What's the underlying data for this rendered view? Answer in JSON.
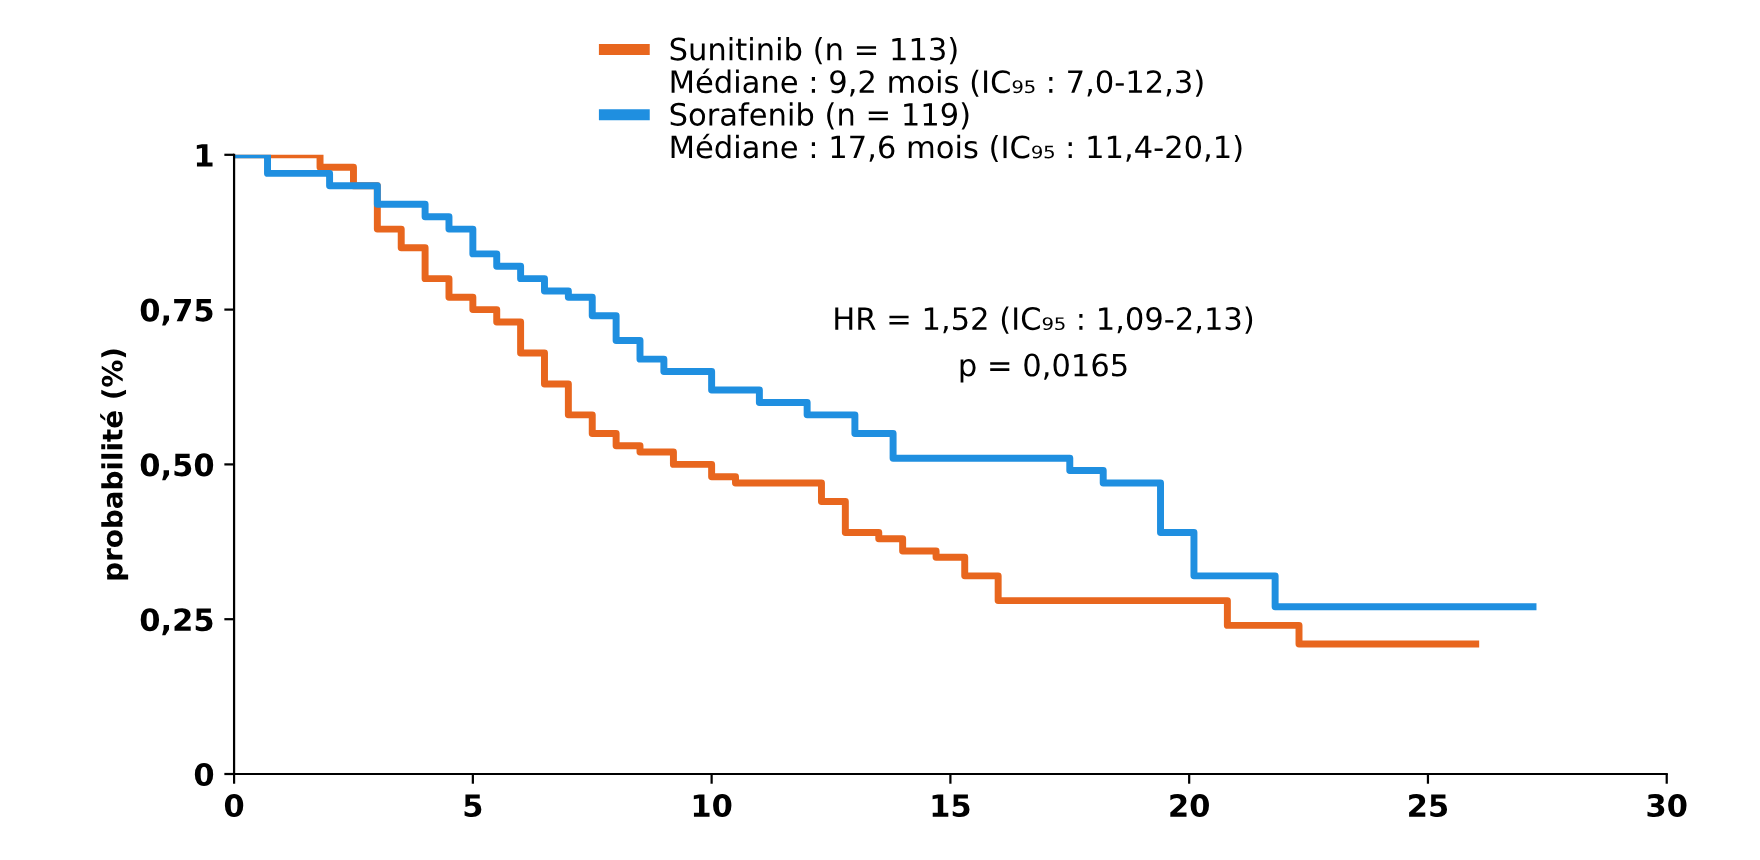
{
  "chart_data": {
    "type": "step",
    "ylabel": "probabilité (%)",
    "xlim": [
      0,
      30
    ],
    "xticks": [
      0,
      5,
      10,
      15,
      20,
      25,
      30
    ],
    "ylim": [
      0,
      1
    ],
    "yticks": [
      0,
      {
        "value": 0.25,
        "label": "0,25"
      },
      {
        "value": 0.5,
        "label": "0,50"
      },
      {
        "value": 0.75,
        "label": "0,75"
      },
      1
    ],
    "grid": false,
    "legend": "top",
    "series": [
      {
        "name": "Sunitinib (n = 113)",
        "color": "#e8661e",
        "x": [
          0,
          1.8,
          2.5,
          3,
          3.5,
          4,
          4.5,
          5,
          5.5,
          6,
          6.5,
          7,
          7.5,
          8,
          8.5,
          9.2,
          10,
          10.5,
          12,
          12.3,
          12.8,
          13.5,
          14,
          14.7,
          15.3,
          16,
          20.8,
          22.3,
          26.0
        ],
        "values": [
          1,
          0.98,
          0.95,
          0.88,
          0.85,
          0.8,
          0.77,
          0.75,
          0.73,
          0.68,
          0.63,
          0.58,
          0.55,
          0.53,
          0.52,
          0.5,
          0.48,
          0.47,
          0.47,
          0.44,
          0.39,
          0.38,
          0.36,
          0.35,
          0.32,
          0.28,
          0.24,
          0.21,
          0.21
        ]
      },
      {
        "name": "Sorafenib (n = 119)",
        "color": "#1f8fe0",
        "x": [
          0,
          0.7,
          2,
          3,
          4,
          4.5,
          5,
          5.5,
          6,
          6.5,
          7,
          7.5,
          8,
          8.5,
          9,
          10,
          11,
          12,
          13,
          13.8,
          17.5,
          18.2,
          19.4,
          20.1,
          21.8,
          27.2
        ],
        "values": [
          1,
          0.97,
          0.95,
          0.92,
          0.9,
          0.88,
          0.84,
          0.82,
          0.8,
          0.78,
          0.77,
          0.74,
          0.7,
          0.67,
          0.65,
          0.62,
          0.6,
          0.58,
          0.55,
          0.51,
          0.49,
          0.47,
          0.39,
          0.32,
          0.27,
          0.27
        ]
      }
    ],
    "annotations": [
      "Médiane : 9,2 mois (IC₉₅ : 7,0-12,3)",
      "Médiane : 17,6 mois (IC₉₅ : 11,4-20,1)",
      "HR = 1,52 (IC₉₅ : 1,09-2,13)",
      "p = 0,0165"
    ]
  }
}
